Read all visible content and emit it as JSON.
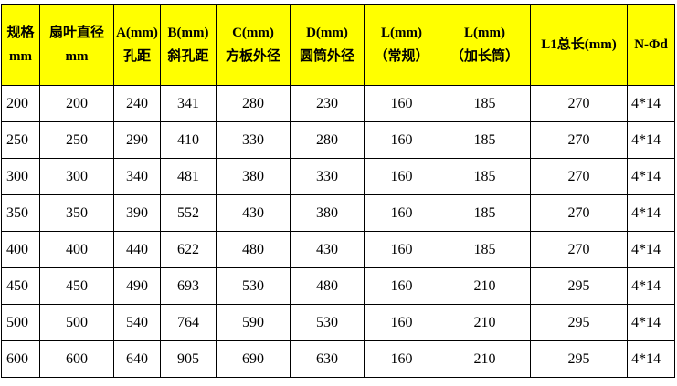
{
  "table": {
    "headers": [
      [
        "规格",
        "mm"
      ],
      [
        "扇叶直径",
        "mm"
      ],
      [
        "A(mm)",
        "孔距"
      ],
      [
        "B(mm)",
        "斜孔距"
      ],
      [
        "C(mm)",
        "方板外径"
      ],
      [
        "D(mm)",
        "圆筒外径"
      ],
      [
        "L(mm)",
        "（常规）"
      ],
      [
        "L(mm)",
        "（加长筒）"
      ],
      [
        "L1总长(mm)",
        ""
      ],
      [
        "N-Φd",
        ""
      ]
    ],
    "rows": [
      [
        "200",
        "200",
        "240",
        "341",
        "280",
        "230",
        "160",
        "185",
        "270",
        "4*14"
      ],
      [
        "250",
        "250",
        "290",
        "410",
        "330",
        "280",
        "160",
        "185",
        "270",
        "4*14"
      ],
      [
        "300",
        "300",
        "340",
        "481",
        "380",
        "330",
        "160",
        "185",
        "270",
        "4*14"
      ],
      [
        "350",
        "350",
        "390",
        "552",
        "430",
        "380",
        "160",
        "185",
        "270",
        "4*14"
      ],
      [
        "400",
        "400",
        "440",
        "622",
        "480",
        "430",
        "160",
        "185",
        "270",
        "4*14"
      ],
      [
        "450",
        "450",
        "490",
        "693",
        "530",
        "480",
        "160",
        "210",
        "295",
        "4*14"
      ],
      [
        "500",
        "500",
        "540",
        "764",
        "590",
        "530",
        "160",
        "210",
        "295",
        "4*14"
      ],
      [
        "600",
        "600",
        "640",
        "905",
        "690",
        "630",
        "160",
        "210",
        "295",
        "4*14"
      ]
    ],
    "colors": {
      "header_bg": "#ffff00"
    }
  }
}
